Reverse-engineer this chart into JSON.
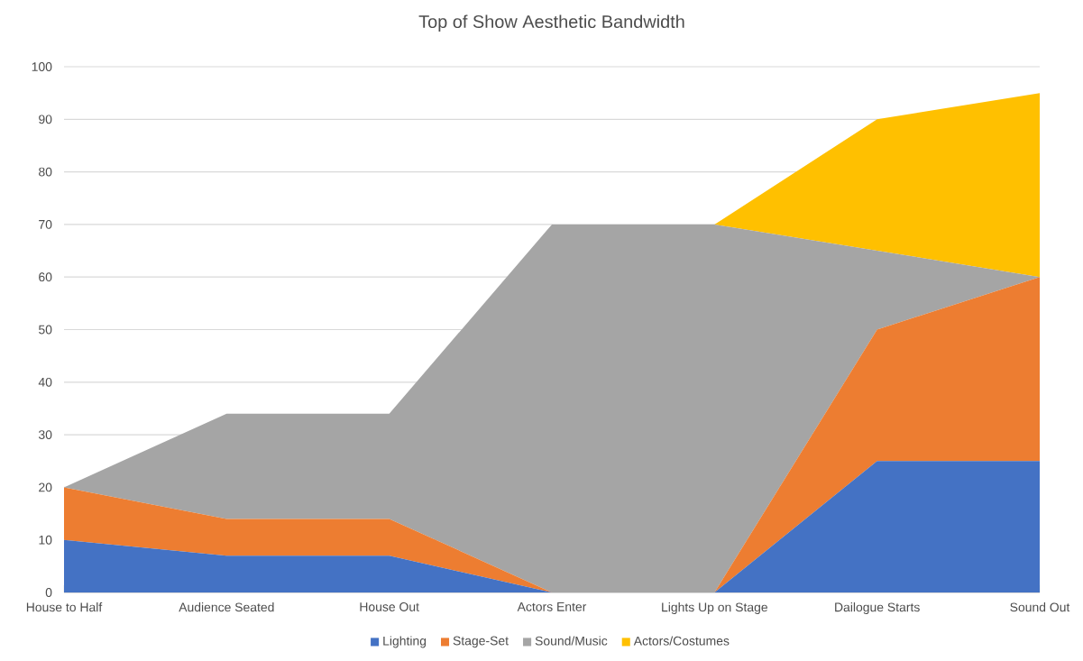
{
  "chart_data": {
    "type": "area",
    "title": "Top of Show Aesthetic Bandwidth",
    "stacked": true,
    "categories": [
      "House to Half",
      "Audience Seated",
      "House Out",
      "Actors Enter",
      "Lights Up on Stage",
      "Dailogue Starts",
      "Sound Out"
    ],
    "series": [
      {
        "name": "Lighting",
        "color": "#4472c4",
        "values": [
          10,
          7,
          7,
          0,
          0,
          25,
          25
        ]
      },
      {
        "name": "Stage-Set",
        "color": "#ed7d31",
        "values": [
          10,
          7,
          7,
          0,
          0,
          25,
          35
        ]
      },
      {
        "name": "Sound/Music",
        "color": "#a5a5a5",
        "values": [
          0,
          20,
          20,
          70,
          70,
          15,
          0
        ]
      },
      {
        "name": "Actors/Costumes",
        "color": "#ffc000",
        "values": [
          0,
          0,
          0,
          0,
          0,
          25,
          35
        ]
      }
    ],
    "ylim": [
      0,
      100
    ],
    "yticks": [
      0,
      10,
      20,
      30,
      40,
      50,
      60,
      70,
      80,
      90,
      100
    ],
    "grid": "y",
    "legend": "bottom"
  }
}
